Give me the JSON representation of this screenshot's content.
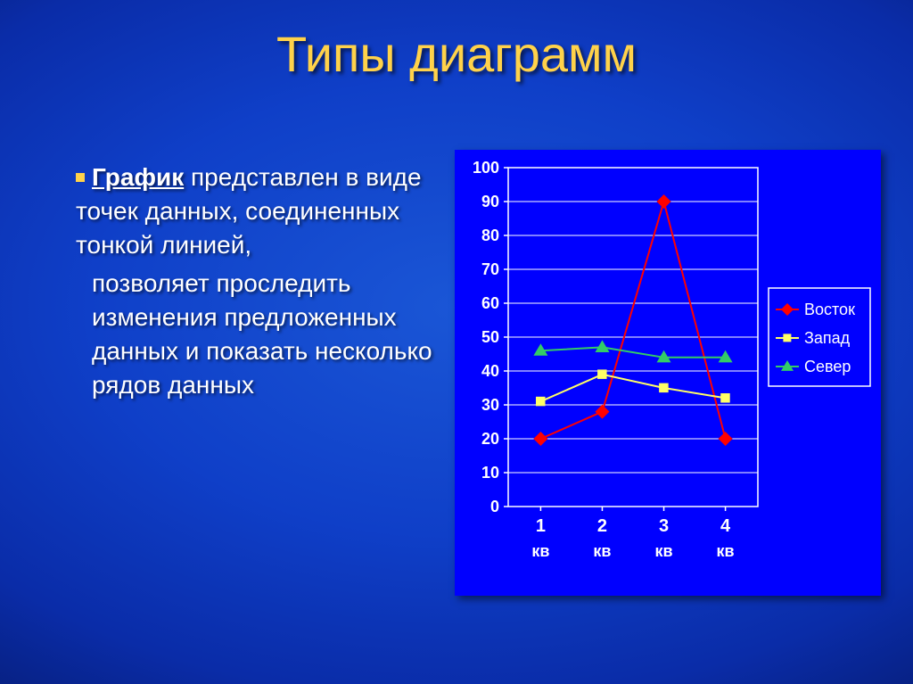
{
  "title": "Типы диаграмм",
  "text": {
    "lead_bold": "График",
    "first_block_rest": " представлен в виде точек данных, соединенных тонкой линией,",
    "second_block": "позволяет проследить изменения предложенных данных и показать несколько рядов данных"
  },
  "chart": {
    "type": "line",
    "panel_bg": "#0000ff",
    "plot_bg": "#0000ff",
    "axis_color": "#ffffff",
    "grid_color": "#ffffff",
    "tick_label_color": "#ffffff",
    "tick_fontsize": 18,
    "axis_label_fontsize": 18,
    "y": {
      "min": 0,
      "max": 100,
      "step": 10,
      "ticks": [
        0,
        10,
        20,
        30,
        40,
        50,
        60,
        70,
        80,
        90,
        100
      ]
    },
    "x": {
      "categories": [
        "1 кв",
        "2 кв",
        "3 кв",
        "4 кв"
      ],
      "tick_top": [
        "1",
        "2",
        "3",
        "4"
      ],
      "tick_bot": [
        "кв",
        "кв",
        "кв",
        "кв"
      ]
    },
    "series": [
      {
        "name": "Восток",
        "color": "#ff0000",
        "marker": "diamond",
        "marker_size": 8,
        "line_width": 2,
        "values": [
          20,
          28,
          90,
          20
        ]
      },
      {
        "name": "Запад",
        "color": "#ffff66",
        "marker": "square",
        "marker_size": 7,
        "line_width": 2,
        "values": [
          31,
          39,
          35,
          32
        ]
      },
      {
        "name": "Север",
        "color": "#33cc66",
        "marker": "triangle",
        "marker_size": 8,
        "line_width": 2,
        "values": [
          46,
          47,
          44,
          44
        ]
      }
    ],
    "legend": {
      "bg": "#0000ff",
      "border": "#ffffff",
      "text_color": "#ffffff",
      "fontsize": 18
    }
  }
}
